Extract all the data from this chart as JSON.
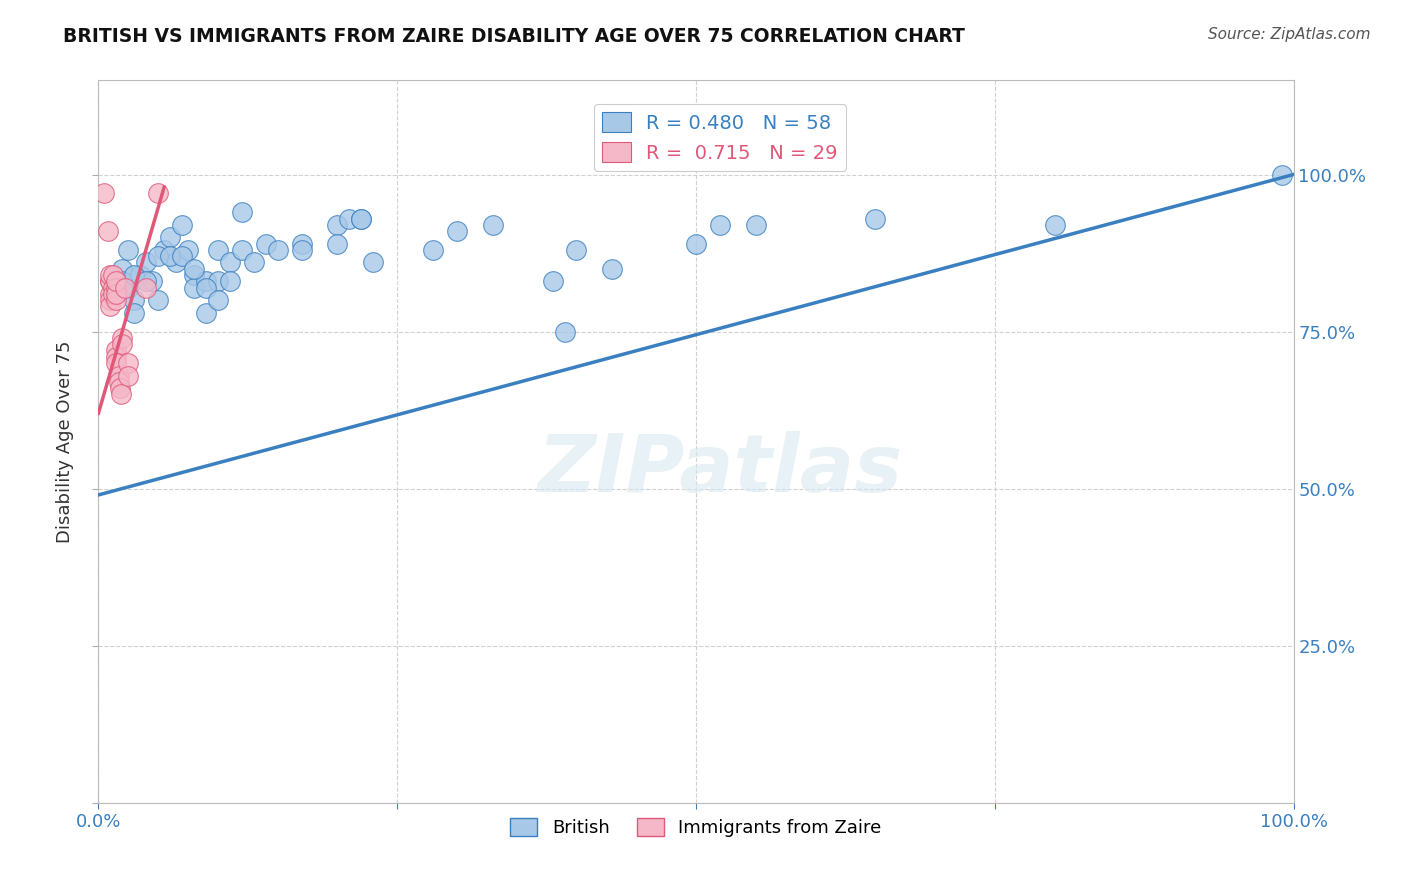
{
  "title": "BRITISH VS IMMIGRANTS FROM ZAIRE DISABILITY AGE OVER 75 CORRELATION CHART",
  "source": "Source: ZipAtlas.com",
  "ylabel": "Disability Age Over 75",
  "watermark": "ZIPatlas",
  "blue_R": 0.48,
  "blue_N": 58,
  "pink_R": 0.715,
  "pink_N": 29,
  "blue_color": "#a8c8e8",
  "pink_color": "#f4b8c8",
  "blue_line_color": "#3a80c0",
  "pink_line_color": "#e05878",
  "blue_scatter": [
    [
      2.0,
      85.0
    ],
    [
      2.5,
      82.0
    ],
    [
      2.5,
      88.0
    ],
    [
      3.0,
      80.0
    ],
    [
      3.0,
      78.0
    ],
    [
      3.5,
      84.0
    ],
    [
      4.0,
      86.0
    ],
    [
      4.5,
      83.0
    ],
    [
      5.0,
      80.0
    ],
    [
      5.5,
      88.0
    ],
    [
      6.0,
      90.0
    ],
    [
      6.5,
      86.0
    ],
    [
      7.0,
      92.0
    ],
    [
      7.5,
      88.0
    ],
    [
      8.0,
      84.0
    ],
    [
      8.0,
      82.0
    ],
    [
      9.0,
      78.0
    ],
    [
      9.0,
      83.0
    ],
    [
      10.0,
      88.0
    ],
    [
      10.0,
      83.0
    ],
    [
      11.0,
      86.0
    ],
    [
      12.0,
      94.0
    ],
    [
      12.0,
      88.0
    ],
    [
      13.0,
      86.0
    ],
    [
      14.0,
      89.0
    ],
    [
      15.0,
      88.0
    ],
    [
      17.0,
      89.0
    ],
    [
      17.0,
      88.0
    ],
    [
      20.0,
      92.0
    ],
    [
      20.0,
      89.0
    ],
    [
      21.0,
      93.0
    ],
    [
      22.0,
      93.0
    ],
    [
      23.0,
      86.0
    ],
    [
      28.0,
      88.0
    ],
    [
      30.0,
      91.0
    ],
    [
      33.0,
      92.0
    ],
    [
      38.0,
      83.0
    ],
    [
      39.0,
      75.0
    ],
    [
      40.0,
      88.0
    ],
    [
      43.0,
      85.0
    ],
    [
      50.0,
      89.0
    ],
    [
      52.0,
      92.0
    ],
    [
      55.0,
      92.0
    ],
    [
      65.0,
      93.0
    ],
    [
      80.0,
      92.0
    ],
    [
      99.0,
      100.0
    ],
    [
      2.0,
      83.0
    ],
    [
      2.0,
      82.0
    ],
    [
      3.0,
      84.0
    ],
    [
      4.0,
      83.0
    ],
    [
      5.0,
      87.0
    ],
    [
      6.0,
      87.0
    ],
    [
      7.0,
      87.0
    ],
    [
      8.0,
      85.0
    ],
    [
      9.0,
      82.0
    ],
    [
      10.0,
      80.0
    ],
    [
      11.0,
      83.0
    ],
    [
      22.0,
      93.0
    ]
  ],
  "pink_scatter": [
    [
      0.5,
      97.0
    ],
    [
      0.8,
      91.0
    ],
    [
      1.0,
      83.0
    ],
    [
      1.0,
      81.0
    ],
    [
      1.0,
      83.0
    ],
    [
      1.0,
      84.0
    ],
    [
      1.0,
      80.0
    ],
    [
      1.0,
      79.0
    ],
    [
      1.2,
      82.0
    ],
    [
      1.2,
      81.0
    ],
    [
      1.2,
      84.0
    ],
    [
      1.5,
      82.0
    ],
    [
      1.5,
      80.0
    ],
    [
      1.5,
      81.0
    ],
    [
      1.5,
      83.0
    ],
    [
      1.5,
      72.0
    ],
    [
      1.5,
      71.0
    ],
    [
      1.5,
      70.0
    ],
    [
      1.7,
      68.0
    ],
    [
      1.7,
      67.0
    ],
    [
      1.8,
      66.0
    ],
    [
      1.9,
      65.0
    ],
    [
      2.0,
      74.0
    ],
    [
      2.0,
      73.0
    ],
    [
      2.2,
      82.0
    ],
    [
      2.5,
      70.0
    ],
    [
      2.5,
      68.0
    ],
    [
      4.0,
      82.0
    ],
    [
      5.0,
      97.0
    ]
  ],
  "blue_trend_x": [
    0.0,
    100.0
  ],
  "blue_trend_y": [
    49.0,
    100.0
  ],
  "pink_trend_x": [
    0.0,
    5.5
  ],
  "pink_trend_y": [
    62.0,
    98.0
  ],
  "xlim": [
    0.0,
    100.0
  ],
  "ylim": [
    0.0,
    115.0
  ],
  "yticks": [
    0.0,
    25.0,
    50.0,
    75.0,
    100.0
  ],
  "ytick_labels_right": [
    "",
    "25.0%",
    "50.0%",
    "75.0%",
    "100.0%"
  ],
  "xticks": [
    0.0,
    25.0,
    50.0,
    75.0,
    100.0
  ],
  "xtick_labels": [
    "0.0%",
    "",
    "",
    "",
    "100.0%"
  ]
}
